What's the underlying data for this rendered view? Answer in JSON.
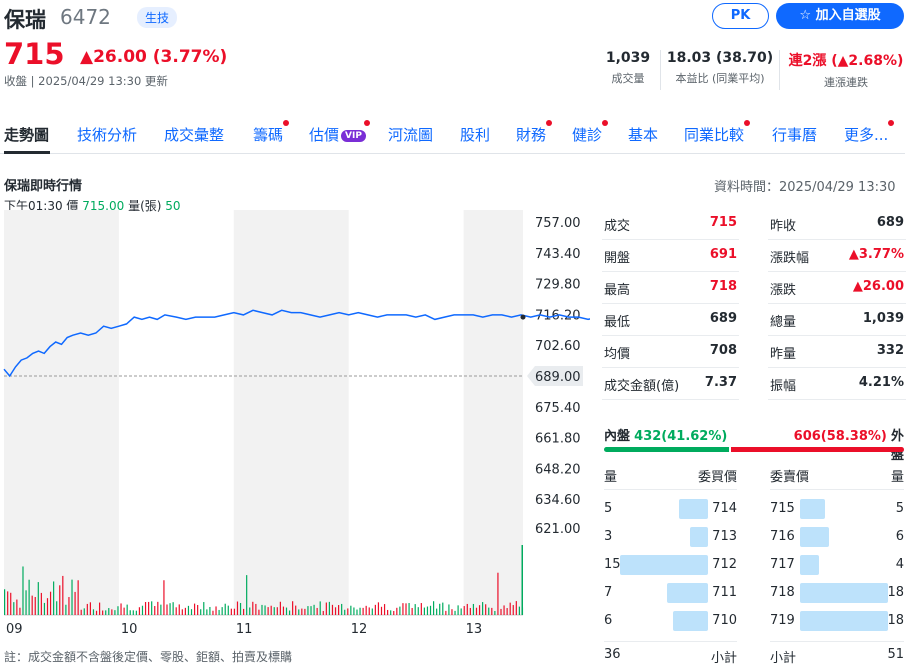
{
  "header": {
    "name": "保瑞",
    "code": "6472",
    "badge": "生技",
    "pk_label": "PK",
    "watch_label": "加入自選股",
    "price": "715",
    "change": "▲26.00 (3.77%)",
    "close_time": "收盤 | 2025/04/29 13:30 更新",
    "stats": [
      {
        "value": "1,039",
        "label": "成交量"
      },
      {
        "value": "18.03 (38.70)",
        "label": "本益比 (同業平均)"
      },
      {
        "value": "連2漲 (▲2.68%)",
        "label": "連漲連跌"
      }
    ]
  },
  "tabs": [
    {
      "label": "走勢圖",
      "active": true
    },
    {
      "label": "技術分析"
    },
    {
      "label": "成交彙整"
    },
    {
      "label": "籌碼",
      "dot": true
    },
    {
      "label": "估價",
      "vip": "VIP",
      "dot": true
    },
    {
      "label": "河流圖"
    },
    {
      "label": "股利"
    },
    {
      "label": "財務",
      "dot": true
    },
    {
      "label": "健診",
      "dot": true
    },
    {
      "label": "基本"
    },
    {
      "label": "同業比較",
      "dot": true
    },
    {
      "label": "行事曆"
    },
    {
      "label": "更多...",
      "dot": true
    }
  ],
  "section": {
    "title": "保瑞即時行情",
    "data_time": "資料時間：2025/04/29 13:30",
    "hover_time": "下午01:30",
    "hover_price_label": "價",
    "hover_price": "715.00",
    "hover_vol_label": "量(張)",
    "hover_vol": "50"
  },
  "chart_data": {
    "type": "line",
    "y_ticks": [
      "757.00",
      "743.40",
      "729.80",
      "716.20",
      "702.60",
      "675.40",
      "661.80",
      "648.20",
      "634.60",
      "621.00"
    ],
    "ylim": [
      621,
      757
    ],
    "prev_close": 689,
    "prev_close_label": "689.00",
    "x_ticks": [
      "09",
      "10",
      "11",
      "12",
      "13"
    ],
    "price_series": [
      [
        0,
        692
      ],
      [
        3,
        689
      ],
      [
        6,
        693
      ],
      [
        9,
        696
      ],
      [
        12,
        697
      ],
      [
        15,
        699
      ],
      [
        18,
        700
      ],
      [
        21,
        699
      ],
      [
        24,
        702
      ],
      [
        27,
        704
      ],
      [
        30,
        703
      ],
      [
        33,
        706
      ],
      [
        36,
        707
      ],
      [
        40,
        708
      ],
      [
        44,
        707
      ],
      [
        48,
        708
      ],
      [
        52,
        711
      ],
      [
        56,
        710
      ],
      [
        60,
        711
      ],
      [
        64,
        712
      ],
      [
        68,
        715
      ],
      [
        72,
        714
      ],
      [
        76,
        715
      ],
      [
        80,
        714
      ],
      [
        84,
        716
      ],
      [
        90,
        715
      ],
      [
        95,
        714
      ],
      [
        100,
        715
      ],
      [
        105,
        715
      ],
      [
        110,
        715
      ],
      [
        115,
        716
      ],
      [
        120,
        717
      ],
      [
        125,
        716
      ],
      [
        130,
        718
      ],
      [
        135,
        717
      ],
      [
        140,
        716
      ],
      [
        145,
        718
      ],
      [
        150,
        717
      ],
      [
        155,
        717
      ],
      [
        160,
        716
      ],
      [
        165,
        715
      ],
      [
        170,
        716
      ],
      [
        175,
        717
      ],
      [
        180,
        716
      ],
      [
        185,
        717
      ],
      [
        190,
        716
      ],
      [
        195,
        715
      ],
      [
        200,
        716
      ],
      [
        205,
        716
      ],
      [
        210,
        716
      ],
      [
        215,
        715
      ],
      [
        220,
        716
      ],
      [
        225,
        714
      ],
      [
        230,
        715
      ],
      [
        235,
        716
      ],
      [
        240,
        716
      ],
      [
        245,
        716
      ],
      [
        250,
        715
      ],
      [
        255,
        716
      ],
      [
        260,
        716
      ],
      [
        265,
        715
      ],
      [
        270,
        716
      ],
      [
        275,
        715
      ],
      [
        280,
        716
      ],
      [
        285,
        715
      ],
      [
        290,
        716
      ],
      [
        295,
        715
      ],
      [
        300,
        715
      ],
      [
        305,
        714
      ],
      [
        310,
        715
      ],
      [
        315,
        715
      ],
      [
        320,
        716
      ],
      [
        325,
        716
      ],
      [
        330,
        716
      ],
      [
        335,
        715
      ],
      [
        340,
        716
      ],
      [
        345,
        715
      ],
      [
        350,
        716
      ],
      [
        355,
        715
      ],
      [
        360,
        715
      ],
      [
        365,
        716
      ],
      [
        370,
        715
      ],
      [
        375,
        715
      ],
      [
        380,
        716
      ],
      [
        385,
        715
      ],
      [
        390,
        715
      ],
      [
        395,
        714
      ],
      [
        400,
        715
      ],
      [
        405,
        715
      ],
      [
        410,
        715
      ],
      [
        415,
        714
      ],
      [
        420,
        715
      ],
      [
        425,
        715
      ],
      [
        430,
        716
      ],
      [
        435,
        715
      ],
      [
        440,
        716
      ],
      [
        445,
        716
      ],
      [
        450,
        715
      ],
      [
        455,
        715
      ],
      [
        460,
        717
      ],
      [
        465,
        716
      ],
      [
        470,
        715
      ],
      [
        475,
        715
      ],
      [
        480,
        715
      ],
      [
        485,
        715
      ],
      [
        490,
        715
      ],
      [
        495,
        715
      ],
      [
        500,
        715
      ],
      [
        505,
        715
      ],
      [
        510,
        715
      ],
      [
        515,
        716
      ],
      [
        518,
        715
      ],
      [
        521,
        716
      ],
      [
        524,
        716
      ],
      [
        527,
        715
      ],
      [
        530,
        716
      ],
      [
        533,
        715
      ],
      [
        536,
        715
      ],
      [
        539,
        716
      ],
      [
        542,
        716
      ],
      [
        545,
        715
      ],
      [
        548,
        716
      ],
      [
        550,
        715
      ],
      [
        552,
        716
      ],
      [
        554,
        715
      ],
      [
        556,
        715
      ],
      [
        558,
        715
      ],
      [
        560,
        715
      ],
      [
        562,
        715
      ],
      [
        563,
        715
      ],
      [
        564,
        715
      ],
      [
        565,
        715
      ],
      [
        566,
        715
      ],
      [
        567,
        715
      ],
      [
        568,
        715
      ],
      [
        569,
        715
      ],
      [
        570,
        715
      ],
      [
        571,
        716
      ],
      [
        572,
        715
      ],
      [
        573,
        715
      ],
      [
        574,
        716
      ],
      [
        575,
        715
      ],
      [
        576,
        715
      ],
      [
        577,
        715
      ],
      [
        578,
        715
      ],
      [
        579,
        715
      ],
      [
        580,
        715
      ],
      [
        581,
        715
      ],
      [
        582,
        715
      ],
      [
        583,
        715
      ],
      [
        584,
        715
      ],
      [
        585,
        715
      ],
      [
        586,
        715
      ],
      [
        587,
        715
      ],
      [
        588,
        715
      ],
      [
        589,
        715
      ],
      [
        590,
        715
      ],
      [
        591,
        715
      ],
      [
        592,
        715
      ],
      [
        593,
        715
      ],
      [
        594,
        715
      ],
      [
        595,
        715
      ],
      [
        596,
        715
      ],
      [
        597,
        715
      ],
      [
        598,
        715
      ],
      [
        599,
        715
      ],
      [
        600,
        715
      ],
      [
        601,
        715
      ],
      [
        602,
        715
      ],
      [
        603,
        715
      ],
      [
        604,
        715
      ],
      [
        605,
        715
      ],
      [
        606,
        715
      ],
      [
        607,
        715
      ],
      [
        608,
        715
      ],
      [
        609,
        715
      ],
      [
        610,
        715
      ],
      [
        611,
        715
      ],
      [
        612,
        715
      ],
      [
        613,
        715
      ],
      [
        614,
        715
      ],
      [
        615,
        715
      ],
      [
        616,
        715
      ],
      [
        617,
        715
      ],
      [
        618,
        715
      ],
      [
        619,
        715
      ],
      [
        620,
        715
      ],
      [
        621,
        715
      ],
      [
        622,
        715
      ],
      [
        623,
        715
      ],
      [
        624,
        715
      ],
      [
        625,
        715
      ],
      [
        626,
        715
      ],
      [
        627,
        715
      ],
      [
        628,
        715
      ],
      [
        629,
        715
      ],
      [
        630,
        715
      ],
      [
        631,
        715
      ],
      [
        632,
        715
      ],
      [
        633,
        715
      ],
      [
        634,
        715
      ],
      [
        635,
        715
      ],
      [
        636,
        715
      ],
      [
        637,
        715
      ],
      [
        638,
        715
      ],
      [
        639,
        715
      ],
      [
        640,
        715
      ],
      [
        641,
        715
      ],
      [
        642,
        715
      ],
      [
        643,
        715
      ],
      [
        644,
        715
      ],
      [
        645,
        715
      ],
      [
        646,
        715
      ],
      [
        647,
        715
      ],
      [
        648,
        715
      ],
      [
        649,
        715
      ],
      [
        650,
        715
      ],
      [
        651,
        715
      ],
      [
        652,
        715
      ],
      [
        653,
        715
      ],
      [
        654,
        715
      ],
      [
        655,
        715
      ],
      [
        656,
        715
      ],
      [
        657,
        715
      ],
      [
        658,
        715
      ],
      [
        659,
        715
      ],
      [
        660,
        715
      ],
      [
        661,
        715
      ],
      [
        662,
        715
      ],
      [
        663,
        715
      ],
      [
        664,
        715
      ],
      [
        665,
        715
      ],
      [
        666,
        715
      ],
      [
        667,
        715
      ],
      [
        668,
        715
      ],
      [
        669,
        715
      ],
      [
        670,
        715
      ],
      [
        671,
        715
      ]
    ],
    "colors": {
      "line": "#0f69ff",
      "up": "#eb0f29",
      "down": "#00ab5e",
      "shade": "#f2f2f2"
    }
  },
  "quote": {
    "left": [
      {
        "label": "成交",
        "value": "715",
        "color": "red"
      },
      {
        "label": "開盤",
        "value": "691",
        "color": "red"
      },
      {
        "label": "最高",
        "value": "718",
        "color": "red"
      },
      {
        "label": "最低",
        "value": "689",
        "color": ""
      },
      {
        "label": "均價",
        "value": "708",
        "color": ""
      },
      {
        "label": "成交金額(億)",
        "value": "7.37",
        "color": ""
      }
    ],
    "right": [
      {
        "label": "昨收",
        "value": "689",
        "color": ""
      },
      {
        "label": "漲跌幅",
        "value": "▲3.77%",
        "color": "red"
      },
      {
        "label": "漲跌",
        "value": "▲26.00",
        "color": "red"
      },
      {
        "label": "總量",
        "value": "1,039",
        "color": ""
      },
      {
        "label": "昨量",
        "value": "332",
        "color": ""
      },
      {
        "label": "振幅",
        "value": "4.21%",
        "color": ""
      }
    ]
  },
  "inout": {
    "in_label": "內盤",
    "in_value": "432(41.62%)",
    "in_fraction": 0.4162,
    "out_value": "606(58.38%)",
    "out_label": "外盤"
  },
  "orderbook": {
    "bid_header_qty": "量",
    "bid_header_price": "委買價",
    "ask_header_price": "委賣價",
    "ask_header_qty": "量",
    "bids": [
      {
        "qty": "5",
        "price": "714",
        "frac": 0.33
      },
      {
        "qty": "3",
        "price": "713",
        "frac": 0.2
      },
      {
        "qty": "15",
        "price": "712",
        "frac": 1.0
      },
      {
        "qty": "7",
        "price": "711",
        "frac": 0.47
      },
      {
        "qty": "6",
        "price": "710",
        "frac": 0.4
      }
    ],
    "asks": [
      {
        "price": "715",
        "qty": "5",
        "frac": 0.28
      },
      {
        "price": "716",
        "qty": "6",
        "frac": 0.33
      },
      {
        "price": "717",
        "qty": "4",
        "frac": 0.22
      },
      {
        "price": "718",
        "qty": "18",
        "frac": 1.0
      },
      {
        "price": "719",
        "qty": "18",
        "frac": 1.0
      }
    ],
    "bid_total": "36",
    "subtotal_label": "小計",
    "ask_total": "51"
  },
  "note": "註：成交金額不含盤後定價、零股、鉅額、拍賣及標購"
}
